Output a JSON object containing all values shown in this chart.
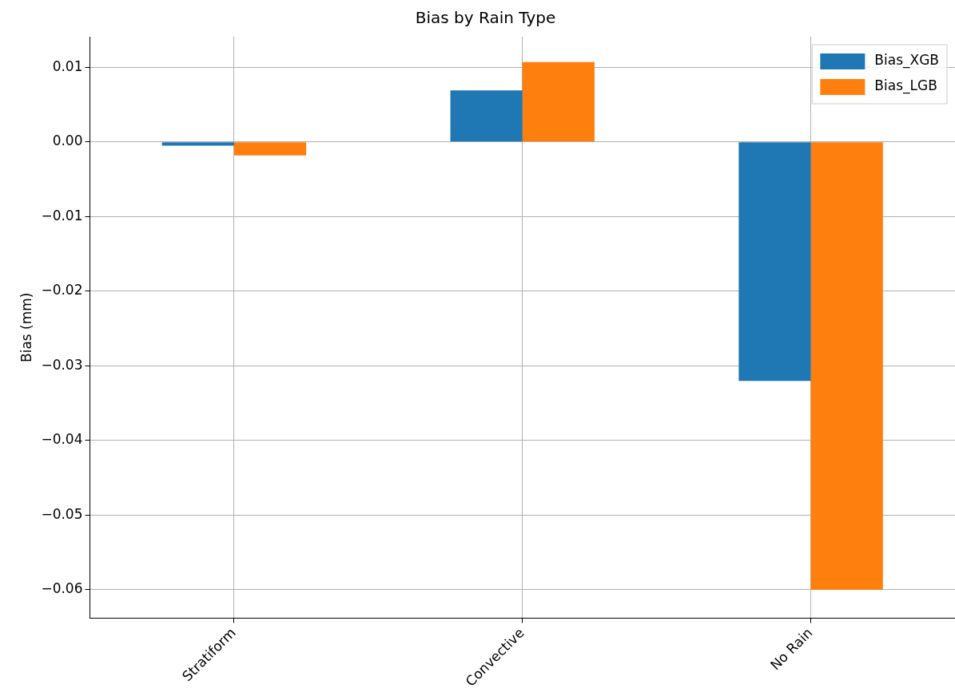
{
  "chart_data": {
    "type": "bar",
    "title": "Bias by Rain Type",
    "ylabel": "Bias (mm)",
    "categories": [
      "Stratiform",
      "Convective",
      "No Rain"
    ],
    "series": [
      {
        "name": "Bias_XGB",
        "color": "#1f77b4",
        "values": [
          -0.0005,
          0.0069,
          -0.032
        ]
      },
      {
        "name": "Bias_LGB",
        "color": "#ff7f0e",
        "values": [
          -0.0018,
          0.0107,
          -0.06
        ]
      }
    ],
    "ylim": [
      -0.0638,
      0.0141
    ],
    "yticks": [
      {
        "value": -0.06,
        "label": "−0.06"
      },
      {
        "value": -0.05,
        "label": "−0.05"
      },
      {
        "value": -0.04,
        "label": "−0.04"
      },
      {
        "value": -0.03,
        "label": "−0.03"
      },
      {
        "value": -0.02,
        "label": "−0.02"
      },
      {
        "value": -0.01,
        "label": "−0.01"
      },
      {
        "value": 0,
        "label": "0.00"
      },
      {
        "value": 0.01,
        "label": "0.01"
      }
    ],
    "grid": true,
    "legend": "top right"
  }
}
